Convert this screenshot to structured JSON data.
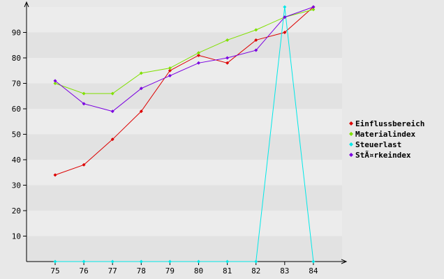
{
  "chart_data": {
    "type": "line",
    "title": "",
    "xlabel": "",
    "ylabel": "",
    "x": [
      "75",
      "76",
      "77",
      "78",
      "79",
      "80",
      "81",
      "82",
      "83",
      "84"
    ],
    "ylim": [
      0,
      100
    ],
    "yticks": [
      10,
      20,
      30,
      40,
      50,
      60,
      70,
      80,
      90
    ],
    "grid": true,
    "legend_position": "right",
    "series": [
      {
        "name": "Einflussbereich",
        "color": "#dd0000",
        "values": [
          34,
          38,
          48,
          59,
          75,
          81,
          78,
          87,
          90,
          100
        ]
      },
      {
        "name": "Materialindex",
        "color": "#80e000",
        "values": [
          70,
          66,
          66,
          74,
          76,
          82,
          87,
          91,
          96,
          99
        ]
      },
      {
        "name": "Steuerlast",
        "color": "#00e8e8",
        "values": [
          0,
          0,
          0,
          0,
          0,
          0,
          0,
          0,
          100,
          0
        ]
      },
      {
        "name": "StÃ¤rkeindex",
        "color": "#7a00e0",
        "values": [
          71,
          62,
          59,
          68,
          73,
          78,
          80,
          83,
          96,
          100
        ]
      }
    ]
  }
}
